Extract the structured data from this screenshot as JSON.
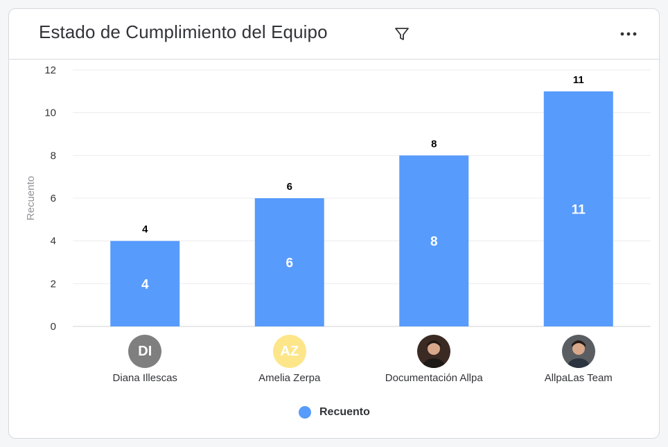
{
  "widget": {
    "title": "Estado de Cumplimiento del Equipo",
    "filter_icon": "filter-icon",
    "menu_icon": "more-horizontal-icon"
  },
  "colors": {
    "bar": "#579bfc",
    "grid": "#ececef",
    "axis_text": "#323338",
    "ylabel": "#8f9197"
  },
  "chart_data": {
    "type": "bar",
    "categories": [
      "Diana Illescas",
      "Amelia Zerpa",
      "Documentación Allpa",
      "AllpaLas Team"
    ],
    "series": [
      {
        "name": "Recuento",
        "values": [
          4,
          6,
          8,
          11
        ]
      }
    ],
    "ylabel": "Recuento",
    "xlabel": "",
    "ylim": [
      0,
      12
    ],
    "yticks": [
      0,
      2,
      4,
      6,
      8,
      10,
      12
    ],
    "grid": true,
    "legend_position": "bottom-center",
    "data_labels": "above-and-inside"
  },
  "avatars": [
    {
      "initials": "DI",
      "kind": "initials",
      "bg": "#7f7f7f",
      "fg": "#ffffff"
    },
    {
      "initials": "AZ",
      "kind": "initials",
      "bg": "#fde68a",
      "fg": "#ffffff"
    },
    {
      "initials": "",
      "kind": "photo",
      "bg": "#3b2a24"
    },
    {
      "initials": "",
      "kind": "photo",
      "bg": "#5a5e63"
    }
  ],
  "legend": {
    "label": "Recuento"
  }
}
